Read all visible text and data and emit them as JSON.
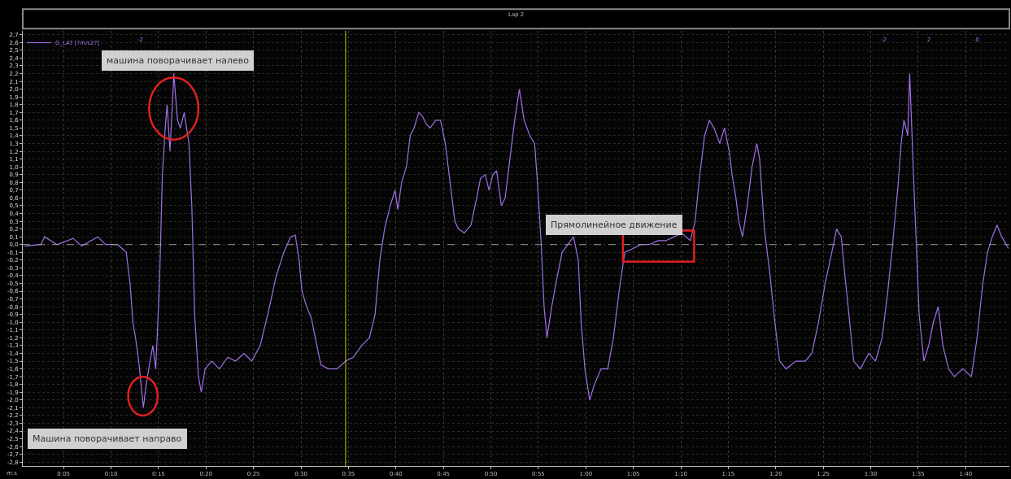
{
  "chart_data": {
    "type": "line",
    "title": "Lap 2",
    "xlabel": "m:s",
    "annotations": [
      "машина поворачивает налево",
      "Машина поворачивает направо",
      "Прямолинейное движение",
      "-2",
      "-2",
      "2",
      "-0"
    ],
    "series": [
      {
        "name": "G_LAT [?m/s2?]",
        "color": "#a070e8",
        "x": [
          0.9,
          2.6,
          3.0,
          4.3,
          6.0,
          6.9,
          8.6,
          9.4,
          10.7,
          11.6,
          12.0,
          12.3,
          12.7,
          13.0,
          13.4,
          13.7,
          14.1,
          14.4,
          14.7,
          15.1,
          15.4,
          15.7,
          15.9,
          16.2,
          16.5,
          16.6,
          17.0,
          17.3,
          17.7,
          18.2,
          18.5,
          18.8,
          19.2,
          19.5,
          19.9,
          20.6,
          21.4,
          22.3,
          23.1,
          24.0,
          24.8,
          25.7,
          26.5,
          27.4,
          28.2,
          28.9,
          29.4,
          29.8,
          30.1,
          30.6,
          31.1,
          31.5,
          32.1,
          32.9,
          33.8,
          34.7,
          35.5,
          36.4,
          37.2,
          37.8,
          38.3,
          38.8,
          39.4,
          39.9,
          40.2,
          40.6,
          41.1,
          41.5,
          41.9,
          42.4,
          42.8,
          43.2,
          43.6,
          44.2,
          44.7,
          45.2,
          45.5,
          45.9,
          46.2,
          46.6,
          47.2,
          47.9,
          48.5,
          48.9,
          49.4,
          49.8,
          50.2,
          50.6,
          51.1,
          51.5,
          52.0,
          52.5,
          53.0,
          53.5,
          54.1,
          54.6,
          54.9,
          55.3,
          55.6,
          55.9,
          56.4,
          57.0,
          57.5,
          58.1,
          58.7,
          59.2,
          59.5,
          59.9,
          60.4,
          60.9,
          61.6,
          62.3,
          62.9,
          63.5,
          64.1,
          65.0,
          65.8,
          66.7,
          67.6,
          68.4,
          69.3,
          70.1,
          71.0,
          71.5,
          72.0,
          72.5,
          73.0,
          73.5,
          74.1,
          74.6,
          75.1,
          75.4,
          75.8,
          76.1,
          76.5,
          77.0,
          77.5,
          78.0,
          78.3,
          78.8,
          79.4,
          79.9,
          80.4,
          81.1,
          82.1,
          83.1,
          83.8,
          84.5,
          85.2,
          85.9,
          86.4,
          86.9,
          87.2,
          87.7,
          88.2,
          88.9,
          89.8,
          90.5,
          91.2,
          91.8,
          92.3,
          92.9,
          93.2,
          93.5,
          93.9,
          94.1,
          94.6,
          95.1,
          95.6,
          96.1,
          96.6,
          97.1,
          97.6,
          98.2,
          98.8,
          99.7,
          100.6,
          101.2,
          101.8,
          102.3,
          102.8,
          103.3,
          103.8,
          104.5
        ],
        "values": [
          -0.02,
          0.0,
          0.1,
          0.0,
          0.08,
          -0.02,
          0.1,
          0.0,
          0.0,
          -0.1,
          -0.5,
          -1.0,
          -1.3,
          -1.6,
          -2.1,
          -1.8,
          -1.5,
          -1.3,
          -1.6,
          -0.5,
          0.9,
          1.5,
          1.8,
          1.2,
          1.9,
          2.2,
          1.6,
          1.5,
          1.7,
          1.3,
          0.5,
          -0.9,
          -1.7,
          -1.9,
          -1.6,
          -1.5,
          -1.6,
          -1.45,
          -1.5,
          -1.4,
          -1.5,
          -1.3,
          -0.9,
          -0.4,
          -0.1,
          0.1,
          0.12,
          -0.2,
          -0.6,
          -0.8,
          -0.95,
          -1.2,
          -1.55,
          -1.6,
          -1.6,
          -1.5,
          -1.45,
          -1.3,
          -1.2,
          -0.9,
          -0.2,
          0.2,
          0.5,
          0.7,
          0.45,
          0.8,
          1.0,
          1.4,
          1.5,
          1.7,
          1.65,
          1.55,
          1.5,
          1.6,
          1.6,
          1.3,
          1.0,
          0.6,
          0.3,
          0.2,
          0.15,
          0.25,
          0.6,
          0.85,
          0.9,
          0.7,
          0.9,
          0.95,
          0.5,
          0.6,
          1.1,
          1.6,
          2.0,
          1.6,
          1.4,
          1.3,
          0.8,
          0.0,
          -0.8,
          -1.2,
          -0.8,
          -0.4,
          -0.1,
          0.0,
          0.1,
          -0.2,
          -1.0,
          -1.6,
          -2.0,
          -1.8,
          -1.6,
          -1.6,
          -1.2,
          -0.6,
          -0.1,
          -0.05,
          0.0,
          0.0,
          0.05,
          0.05,
          0.1,
          0.15,
          0.05,
          0.3,
          0.9,
          1.4,
          1.6,
          1.5,
          1.3,
          1.5,
          1.2,
          0.9,
          0.6,
          0.3,
          0.1,
          0.5,
          1.0,
          1.3,
          1.1,
          0.2,
          -0.4,
          -1.0,
          -1.5,
          -1.6,
          -1.5,
          -1.5,
          -1.4,
          -1.0,
          -0.5,
          -0.1,
          0.2,
          0.1,
          -0.3,
          -0.9,
          -1.5,
          -1.6,
          -1.4,
          -1.5,
          -1.2,
          -0.6,
          0.0,
          0.8,
          1.3,
          1.6,
          1.4,
          2.2,
          0.6,
          -0.9,
          -1.5,
          -1.3,
          -1.0,
          -0.8,
          -1.3,
          -1.6,
          -1.7,
          -1.6,
          -1.7,
          -1.2,
          -0.5,
          -0.1,
          0.1,
          0.25,
          0.1,
          -0.05
        ]
      }
    ],
    "xlim": [
      0.7,
      104.6
    ],
    "ylim": [
      -2.85,
      2.75
    ],
    "xticks": [
      {
        "value": 5,
        "label": "0:05"
      },
      {
        "value": 10,
        "label": "0:10"
      },
      {
        "value": 15,
        "label": "0:15"
      },
      {
        "value": 20,
        "label": "0:20"
      },
      {
        "value": 25,
        "label": "0:25"
      },
      {
        "value": 30,
        "label": "0:30"
      },
      {
        "value": 35,
        "label": "0:35"
      },
      {
        "value": 40,
        "label": "0:40"
      },
      {
        "value": 45,
        "label": "0:45"
      },
      {
        "value": 50,
        "label": "0:50"
      },
      {
        "value": 55,
        "label": "0:55"
      },
      {
        "value": 60,
        "label": "1:00"
      },
      {
        "value": 65,
        "label": "1:05"
      },
      {
        "value": 70,
        "label": "1:10"
      },
      {
        "value": 75,
        "label": "1:15"
      },
      {
        "value": 80,
        "label": "1:20"
      },
      {
        "value": 85,
        "label": "1:25"
      },
      {
        "value": 90,
        "label": "1:30"
      },
      {
        "value": 95,
        "label": "1:35"
      },
      {
        "value": 100,
        "label": "1:40"
      }
    ],
    "yticks": [
      {
        "value": 2.7,
        "label": "2,7"
      },
      {
        "value": 2.6,
        "label": "2,6"
      },
      {
        "value": 2.5,
        "label": "2,5"
      },
      {
        "value": 2.4,
        "label": "2,4"
      },
      {
        "value": 2.3,
        "label": "2,3"
      },
      {
        "value": 2.2,
        "label": "2,2"
      },
      {
        "value": 2.1,
        "label": "2,1"
      },
      {
        "value": 2.0,
        "label": "2,0"
      },
      {
        "value": 1.9,
        "label": "1,9"
      },
      {
        "value": 1.8,
        "label": "1,8"
      },
      {
        "value": 1.7,
        "label": "1,7"
      },
      {
        "value": 1.6,
        "label": "1,6"
      },
      {
        "value": 1.5,
        "label": "1,5"
      },
      {
        "value": 1.4,
        "label": "1,4"
      },
      {
        "value": 1.3,
        "label": "1,3"
      },
      {
        "value": 1.2,
        "label": "1,2"
      },
      {
        "value": 1.1,
        "label": "1,1"
      },
      {
        "value": 1.0,
        "label": "1,0"
      },
      {
        "value": 0.9,
        "label": "0,9"
      },
      {
        "value": 0.8,
        "label": "0,8"
      },
      {
        "value": 0.7,
        "label": "0,7"
      },
      {
        "value": 0.6,
        "label": "0,6"
      },
      {
        "value": 0.5,
        "label": "0,5"
      },
      {
        "value": 0.4,
        "label": "0,4"
      },
      {
        "value": 0.3,
        "label": "0,3"
      },
      {
        "value": 0.2,
        "label": "0,2"
      },
      {
        "value": 0.1,
        "label": "0,1"
      },
      {
        "value": 0.0,
        "label": "0,0"
      },
      {
        "value": -0.1,
        "label": "-0,1"
      },
      {
        "value": -0.2,
        "label": "-0,2"
      },
      {
        "value": -0.3,
        "label": "-0,3"
      },
      {
        "value": -0.4,
        "label": "-0,4"
      },
      {
        "value": -0.5,
        "label": "-0,5"
      },
      {
        "value": -0.6,
        "label": "-0,6"
      },
      {
        "value": -0.7,
        "label": "-0,7"
      },
      {
        "value": -0.8,
        "label": "-0,8"
      },
      {
        "value": -0.9,
        "label": "-0,9"
      },
      {
        "value": -1.0,
        "label": "-1,0"
      },
      {
        "value": -1.1,
        "label": "-1,1"
      },
      {
        "value": -1.2,
        "label": "-1,2"
      },
      {
        "value": -1.3,
        "label": "-1,3"
      },
      {
        "value": -1.4,
        "label": "-1,4"
      },
      {
        "value": -1.5,
        "label": "-1,5"
      },
      {
        "value": -1.6,
        "label": "-1,6"
      },
      {
        "value": -1.7,
        "label": "-1,7"
      },
      {
        "value": -1.8,
        "label": "-1,8"
      },
      {
        "value": -1.9,
        "label": "-1,9"
      },
      {
        "value": -2.0,
        "label": "-2,0"
      },
      {
        "value": -2.1,
        "label": "-2,1"
      },
      {
        "value": -2.2,
        "label": "-2,2"
      },
      {
        "value": -2.3,
        "label": "-2,3"
      },
      {
        "value": -2.4,
        "label": "-2,4"
      },
      {
        "value": -2.5,
        "label": "-2,5"
      },
      {
        "value": -2.6,
        "label": "-2,6"
      },
      {
        "value": -2.7,
        "label": "-2,7"
      },
      {
        "value": -2.8,
        "label": "-2,8"
      }
    ],
    "ref_lines": [
      {
        "axis": "x",
        "value": 34.7,
        "color": "#c8c800",
        "line_style": "solid"
      },
      {
        "axis": "y",
        "value": 0,
        "color": "#9a9a9a",
        "line_style": "dashed"
      }
    ],
    "grid": true,
    "legend": "top left",
    "marker": "none",
    "line_style": "solid"
  }
}
